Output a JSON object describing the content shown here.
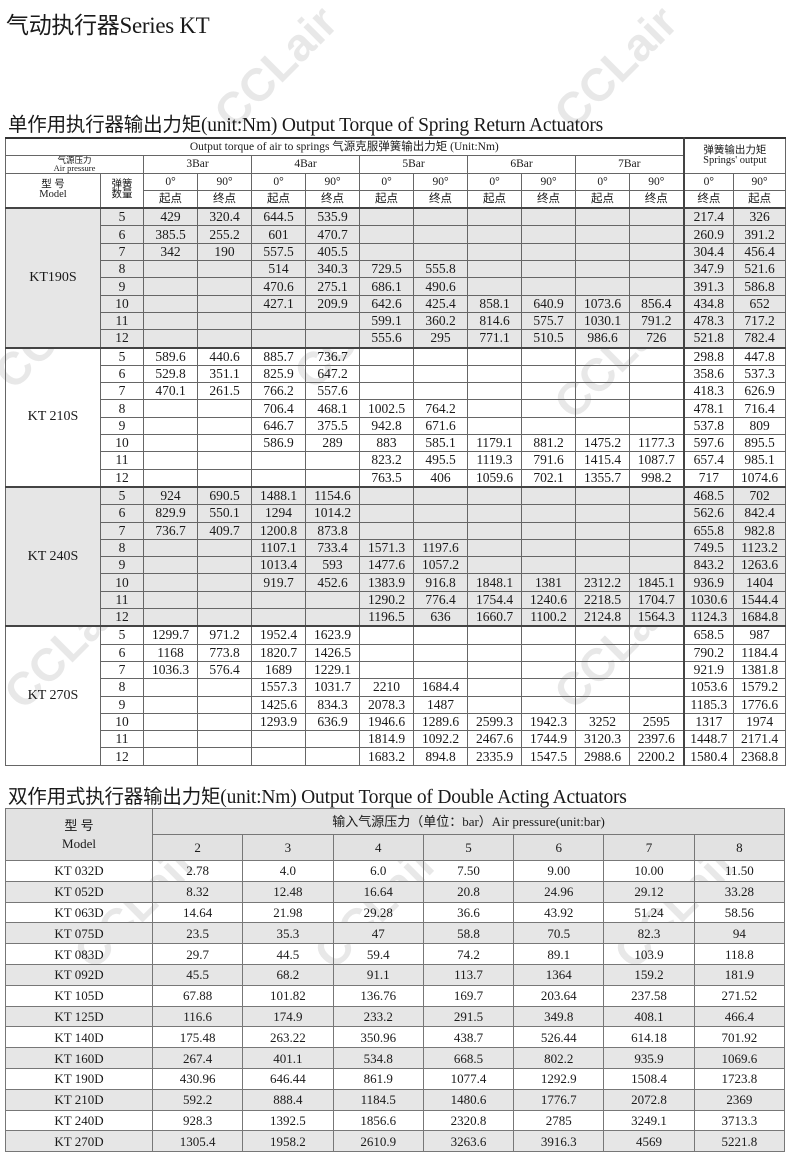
{
  "page_title": "气动执行器Series KT",
  "watermark": "CCLair",
  "spring_return": {
    "title": "单作用执行器输出力矩(unit:Nm)  Output Torque of Spring Return Actuators",
    "header_torque": "Output torque of air to springs  气源克服弹簧输出力矩  (Unit:Nm)",
    "header_spring_output_zh": "弹簧输出力矩",
    "header_spring_output_en": "Springs' output",
    "air_pressure_zh": "气源压力",
    "air_pressure_en": "Air pressure",
    "model_zh": "型 号",
    "model_en": "Model",
    "springs_zh_1": "弹簧",
    "springs_zh_2": "数量",
    "pressures": [
      "3Bar",
      "4Bar",
      "5Bar",
      "6Bar",
      "7Bar"
    ],
    "angle_0": "0°",
    "angle_90": "90°",
    "start_point": "起点",
    "end_point": "终点",
    "groups": [
      {
        "model": "KT190S",
        "rows": [
          {
            "springs": "5",
            "values": [
              "429",
              "320.4",
              "644.5",
              "535.9",
              "",
              "",
              "",
              "",
              "",
              ""
            ],
            "spring_output": [
              "217.4",
              "326"
            ]
          },
          {
            "springs": "6",
            "values": [
              "385.5",
              "255.2",
              "601",
              "470.7",
              "",
              "",
              "",
              "",
              "",
              ""
            ],
            "spring_output": [
              "260.9",
              "391.2"
            ]
          },
          {
            "springs": "7",
            "values": [
              "342",
              "190",
              "557.5",
              "405.5",
              "",
              "",
              "",
              "",
              "",
              ""
            ],
            "spring_output": [
              "304.4",
              "456.4"
            ]
          },
          {
            "springs": "8",
            "values": [
              "",
              "",
              "514",
              "340.3",
              "729.5",
              "555.8",
              "",
              "",
              "",
              ""
            ],
            "spring_output": [
              "347.9",
              "521.6"
            ]
          },
          {
            "springs": "9",
            "values": [
              "",
              "",
              "470.6",
              "275.1",
              "686.1",
              "490.6",
              "",
              "",
              "",
              ""
            ],
            "spring_output": [
              "391.3",
              "586.8"
            ]
          },
          {
            "springs": "10",
            "values": [
              "",
              "",
              "427.1",
              "209.9",
              "642.6",
              "425.4",
              "858.1",
              "640.9",
              "1073.6",
              "856.4"
            ],
            "spring_output": [
              "434.8",
              "652"
            ]
          },
          {
            "springs": "11",
            "values": [
              "",
              "",
              "",
              "",
              "599.1",
              "360.2",
              "814.6",
              "575.7",
              "1030.1",
              "791.2"
            ],
            "spring_output": [
              "478.3",
              "717.2"
            ]
          },
          {
            "springs": "12",
            "values": [
              "",
              "",
              "",
              "",
              "555.6",
              "295",
              "771.1",
              "510.5",
              "986.6",
              "726"
            ],
            "spring_output": [
              "521.8",
              "782.4"
            ]
          }
        ]
      },
      {
        "model": "KT 210S",
        "rows": [
          {
            "springs": "5",
            "values": [
              "589.6",
              "440.6",
              "885.7",
              "736.7",
              "",
              "",
              "",
              "",
              "",
              ""
            ],
            "spring_output": [
              "298.8",
              "447.8"
            ]
          },
          {
            "springs": "6",
            "values": [
              "529.8",
              "351.1",
              "825.9",
              "647.2",
              "",
              "",
              "",
              "",
              "",
              ""
            ],
            "spring_output": [
              "358.6",
              "537.3"
            ]
          },
          {
            "springs": "7",
            "values": [
              "470.1",
              "261.5",
              "766.2",
              "557.6",
              "",
              "",
              "",
              "",
              "",
              ""
            ],
            "spring_output": [
              "418.3",
              "626.9"
            ]
          },
          {
            "springs": "8",
            "values": [
              "",
              "",
              "706.4",
              "468.1",
              "1002.5",
              "764.2",
              "",
              "",
              "",
              ""
            ],
            "spring_output": [
              "478.1",
              "716.4"
            ]
          },
          {
            "springs": "9",
            "values": [
              "",
              "",
              "646.7",
              "375.5",
              "942.8",
              "671.6",
              "",
              "",
              "",
              ""
            ],
            "spring_output": [
              "537.8",
              "809"
            ]
          },
          {
            "springs": "10",
            "values": [
              "",
              "",
              "586.9",
              "289",
              "883",
              "585.1",
              "1179.1",
              "881.2",
              "1475.2",
              "1177.3"
            ],
            "spring_output": [
              "597.6",
              "895.5"
            ]
          },
          {
            "springs": "11",
            "values": [
              "",
              "",
              "",
              "",
              "823.2",
              "495.5",
              "1119.3",
              "791.6",
              "1415.4",
              "1087.7"
            ],
            "spring_output": [
              "657.4",
              "985.1"
            ]
          },
          {
            "springs": "12",
            "values": [
              "",
              "",
              "",
              "",
              "763.5",
              "406",
              "1059.6",
              "702.1",
              "1355.7",
              "998.2"
            ],
            "spring_output": [
              "717",
              "1074.6"
            ]
          }
        ]
      },
      {
        "model": "KT 240S",
        "rows": [
          {
            "springs": "5",
            "values": [
              "924",
              "690.5",
              "1488.1",
              "1154.6",
              "",
              "",
              "",
              "",
              "",
              ""
            ],
            "spring_output": [
              "468.5",
              "702"
            ]
          },
          {
            "springs": "6",
            "values": [
              "829.9",
              "550.1",
              "1294",
              "1014.2",
              "",
              "",
              "",
              "",
              "",
              ""
            ],
            "spring_output": [
              "562.6",
              "842.4"
            ]
          },
          {
            "springs": "7",
            "values": [
              "736.7",
              "409.7",
              "1200.8",
              "873.8",
              "",
              "",
              "",
              "",
              "",
              ""
            ],
            "spring_output": [
              "655.8",
              "982.8"
            ]
          },
          {
            "springs": "8",
            "values": [
              "",
              "",
              "1107.1",
              "733.4",
              "1571.3",
              "1197.6",
              "",
              "",
              "",
              ""
            ],
            "spring_output": [
              "749.5",
              "1123.2"
            ]
          },
          {
            "springs": "9",
            "values": [
              "",
              "",
              "1013.4",
              "593",
              "1477.6",
              "1057.2",
              "",
              "",
              "",
              ""
            ],
            "spring_output": [
              "843.2",
              "1263.6"
            ]
          },
          {
            "springs": "10",
            "values": [
              "",
              "",
              "919.7",
              "452.6",
              "1383.9",
              "916.8",
              "1848.1",
              "1381",
              "2312.2",
              "1845.1"
            ],
            "spring_output": [
              "936.9",
              "1404"
            ]
          },
          {
            "springs": "11",
            "values": [
              "",
              "",
              "",
              "",
              "1290.2",
              "776.4",
              "1754.4",
              "1240.6",
              "2218.5",
              "1704.7"
            ],
            "spring_output": [
              "1030.6",
              "1544.4"
            ]
          },
          {
            "springs": "12",
            "values": [
              "",
              "",
              "",
              "",
              "1196.5",
              "636",
              "1660.7",
              "1100.2",
              "2124.8",
              "1564.3"
            ],
            "spring_output": [
              "1124.3",
              "1684.8"
            ]
          }
        ]
      },
      {
        "model": "KT 270S",
        "rows": [
          {
            "springs": "5",
            "values": [
              "1299.7",
              "971.2",
              "1952.4",
              "1623.9",
              "",
              "",
              "",
              "",
              "",
              ""
            ],
            "spring_output": [
              "658.5",
              "987"
            ]
          },
          {
            "springs": "6",
            "values": [
              "1168",
              "773.8",
              "1820.7",
              "1426.5",
              "",
              "",
              "",
              "",
              "",
              ""
            ],
            "spring_output": [
              "790.2",
              "1184.4"
            ]
          },
          {
            "springs": "7",
            "values": [
              "1036.3",
              "576.4",
              "1689",
              "1229.1",
              "",
              "",
              "",
              "",
              "",
              ""
            ],
            "spring_output": [
              "921.9",
              "1381.8"
            ]
          },
          {
            "springs": "8",
            "values": [
              "",
              "",
              "1557.3",
              "1031.7",
              "2210",
              "1684.4",
              "",
              "",
              "",
              ""
            ],
            "spring_output": [
              "1053.6",
              "1579.2"
            ]
          },
          {
            "springs": "9",
            "values": [
              "",
              "",
              "1425.6",
              "834.3",
              "2078.3",
              "1487",
              "",
              "",
              "",
              ""
            ],
            "spring_output": [
              "1185.3",
              "1776.6"
            ]
          },
          {
            "springs": "10",
            "values": [
              "",
              "",
              "1293.9",
              "636.9",
              "1946.6",
              "1289.6",
              "2599.3",
              "1942.3",
              "3252",
              "2595"
            ],
            "spring_output": [
              "1317",
              "1974"
            ]
          },
          {
            "springs": "11",
            "values": [
              "",
              "",
              "",
              "",
              "1814.9",
              "1092.2",
              "2467.6",
              "1744.9",
              "3120.3",
              "2397.6"
            ],
            "spring_output": [
              "1448.7",
              "2171.4"
            ]
          },
          {
            "springs": "12",
            "values": [
              "",
              "",
              "",
              "",
              "1683.2",
              "894.8",
              "2335.9",
              "1547.5",
              "2988.6",
              "2200.2"
            ],
            "spring_output": [
              "1580.4",
              "2368.8"
            ]
          }
        ]
      }
    ]
  },
  "double_acting": {
    "title": "双作用式执行器输出力矩(unit:Nm)  Output Torque of Double Acting Actuators",
    "model_zh": "型  号",
    "model_en": "Model",
    "air_pressure_header": "输入气源压力（单位：bar）Air pressure(unit:bar)",
    "pressures": [
      "2",
      "3",
      "4",
      "5",
      "6",
      "7",
      "8"
    ],
    "rows": [
      {
        "model": "KT 032D",
        "values": [
          "2.78",
          "4.0",
          "6.0",
          "7.50",
          "9.00",
          "10.00",
          "11.50"
        ]
      },
      {
        "model": "KT 052D",
        "values": [
          "8.32",
          "12.48",
          "16.64",
          "20.8",
          "24.96",
          "29.12",
          "33.28"
        ]
      },
      {
        "model": "KT 063D",
        "values": [
          "14.64",
          "21.98",
          "29.28",
          "36.6",
          "43.92",
          "51.24",
          "58.56"
        ]
      },
      {
        "model": "KT 075D",
        "values": [
          "23.5",
          "35.3",
          "47",
          "58.8",
          "70.5",
          "82.3",
          "94"
        ]
      },
      {
        "model": "KT 083D",
        "values": [
          "29.7",
          "44.5",
          "59.4",
          "74.2",
          "89.1",
          "103.9",
          "118.8"
        ]
      },
      {
        "model": "KT 092D",
        "values": [
          "45.5",
          "68.2",
          "91.1",
          "113.7",
          "1364",
          "159.2",
          "181.9"
        ]
      },
      {
        "model": "KT 105D",
        "values": [
          "67.88",
          "101.82",
          "136.76",
          "169.7",
          "203.64",
          "237.58",
          "271.52"
        ]
      },
      {
        "model": "KT 125D",
        "values": [
          "116.6",
          "174.9",
          "233.2",
          "291.5",
          "349.8",
          "408.1",
          "466.4"
        ]
      },
      {
        "model": "KT 140D",
        "values": [
          "175.48",
          "263.22",
          "350.96",
          "438.7",
          "526.44",
          "614.18",
          "701.92"
        ]
      },
      {
        "model": "KT 160D",
        "values": [
          "267.4",
          "401.1",
          "534.8",
          "668.5",
          "802.2",
          "935.9",
          "1069.6"
        ]
      },
      {
        "model": "KT 190D",
        "values": [
          "430.96",
          "646.44",
          "861.9",
          "1077.4",
          "1292.9",
          "1508.4",
          "1723.8"
        ]
      },
      {
        "model": "KT 210D",
        "values": [
          "592.2",
          "888.4",
          "1184.5",
          "1480.6",
          "1776.7",
          "2072.8",
          "2369"
        ]
      },
      {
        "model": "KT 240D",
        "values": [
          "928.3",
          "1392.5",
          "1856.6",
          "2320.8",
          "2785",
          "3249.1",
          "3713.3"
        ]
      },
      {
        "model": "KT 270D",
        "values": [
          "1305.4",
          "1958.2",
          "2610.9",
          "3263.6",
          "3916.3",
          "4569",
          "5221.8"
        ]
      }
    ]
  }
}
